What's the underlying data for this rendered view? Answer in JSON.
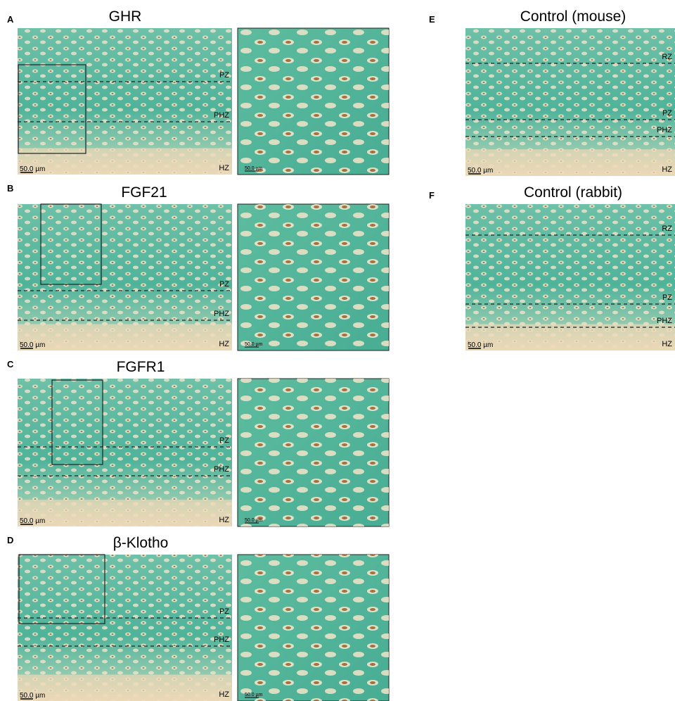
{
  "panels": [
    {
      "letter": "A",
      "title": "GHR",
      "zones": [
        "PZ",
        "PHZ",
        "HZ"
      ],
      "scale_bar": "50.0 µm",
      "inset_scale_bar": "50.0 µm"
    },
    {
      "letter": "B",
      "title": "FGF21",
      "zones": [
        "PZ",
        "PHZ",
        "HZ"
      ],
      "scale_bar": "50.0 µm",
      "inset_scale_bar": "50.0 µm"
    },
    {
      "letter": "C",
      "title": "FGFR1",
      "zones": [
        "PZ",
        "PHZ",
        "HZ"
      ],
      "scale_bar": "50.0 µm",
      "inset_scale_bar": "50.0 µm"
    },
    {
      "letter": "D",
      "title": "β-Klotho",
      "zones": [
        "PZ",
        "PHZ",
        "HZ"
      ],
      "scale_bar": "50.0 µm",
      "inset_scale_bar": "50.0 µm"
    },
    {
      "letter": "E",
      "title": "Control (mouse)",
      "zones": [
        "RZ",
        "PZ",
        "PHZ",
        "HZ"
      ],
      "scale_bar": "50.0 µm"
    },
    {
      "letter": "F",
      "title": "Control (rabbit)",
      "zones": [
        "RZ",
        "PZ",
        "PHZ",
        "HZ"
      ],
      "scale_bar": "50.0 µm"
    }
  ]
}
